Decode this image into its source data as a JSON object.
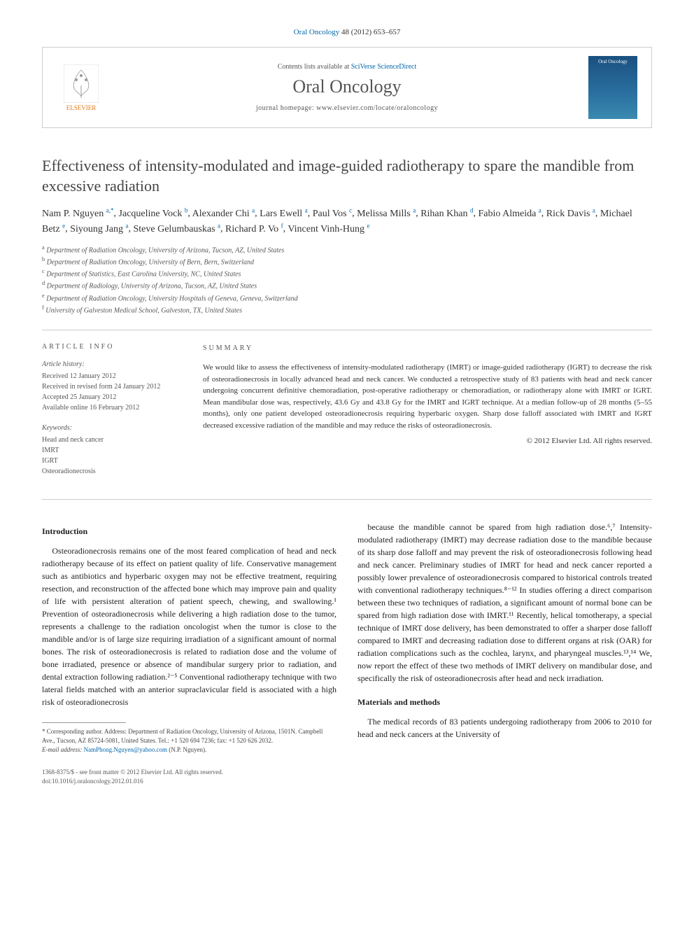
{
  "citation": {
    "journal_link": "Oral Oncology",
    "ref": " 48 (2012) 653–657"
  },
  "header": {
    "contents_prefix": "Contents lists available at ",
    "contents_link": "SciVerse ScienceDirect",
    "journal_name": "Oral Oncology",
    "homepage_label": "journal homepage: www.elsevier.com/locate/oraloncology",
    "publisher": "ELSEVIER",
    "cover_text": "Oral Oncology"
  },
  "title": "Effectiveness of intensity-modulated and image-guided radiotherapy to spare the mandible from excessive radiation",
  "authors_html": [
    {
      "name": "Nam P. Nguyen",
      "sup": "a,*"
    },
    {
      "name": "Jacqueline Vock",
      "sup": "b"
    },
    {
      "name": "Alexander Chi",
      "sup": "a"
    },
    {
      "name": "Lars Ewell",
      "sup": "a"
    },
    {
      "name": "Paul Vos",
      "sup": "c"
    },
    {
      "name": "Melissa Mills",
      "sup": "a"
    },
    {
      "name": "Rihan Khan",
      "sup": "d"
    },
    {
      "name": "Fabio Almeida",
      "sup": "a"
    },
    {
      "name": "Rick Davis",
      "sup": "a"
    },
    {
      "name": "Michael Betz",
      "sup": "e"
    },
    {
      "name": "Siyoung Jang",
      "sup": "a"
    },
    {
      "name": "Steve Gelumbauskas",
      "sup": "a"
    },
    {
      "name": "Richard P. Vo",
      "sup": "f"
    },
    {
      "name": "Vincent Vinh-Hung",
      "sup": "e"
    }
  ],
  "affiliations": [
    {
      "sup": "a",
      "text": "Department of Radiation Oncology, University of Arizona, Tucson, AZ, United States"
    },
    {
      "sup": "b",
      "text": "Department of Radiation Oncology, University of Bern, Bern, Switzerland"
    },
    {
      "sup": "c",
      "text": "Department of Statistics, East Carolina University, NC, United States"
    },
    {
      "sup": "d",
      "text": "Department of Radiology, University of Arizona, Tucson, AZ, United States"
    },
    {
      "sup": "e",
      "text": "Department of Radiation Oncology, University Hospitals of Geneva, Geneva, Switzerland"
    },
    {
      "sup": "f",
      "text": "University of Galveston Medical School, Galveston, TX, United States"
    }
  ],
  "article_info": {
    "heading": "ARTICLE INFO",
    "history_label": "Article history:",
    "history": [
      "Received 12 January 2012",
      "Received in revised form 24 January 2012",
      "Accepted 25 January 2012",
      "Available online 16 February 2012"
    ],
    "keywords_label": "Keywords:",
    "keywords": [
      "Head and neck cancer",
      "IMRT",
      "IGRT",
      "Osteoradionecrosis"
    ]
  },
  "summary": {
    "heading": "SUMMARY",
    "text": "We would like to assess the effectiveness of intensity-modulated radiotherapy (IMRT) or image-guided radiotherapy (IGRT) to decrease the risk of osteoradionecrosis in locally advanced head and neck cancer. We conducted a retrospective study of 83 patients with head and neck cancer undergoing concurrent definitive chemoradiation, post-operative radiotherapy or chemoradiation, or radiotherapy alone with IMRT or IGRT. Mean mandibular dose was, respectively, 43.6 Gy and 43.8 Gy for the IMRT and IGRT technique. At a median follow-up of 28 months (5–55 months), only one patient developed osteoradionecrosis requiring hyperbaric oxygen. Sharp dose falloff associated with IMRT and IGRT decreased excessive radiation of the mandible and may reduce the risks of osteoradionecrosis.",
    "copyright": "© 2012 Elsevier Ltd. All rights reserved."
  },
  "sections": {
    "intro_heading": "Introduction",
    "intro_p1": "Osteoradionecrosis remains one of the most feared complication of head and neck radiotherapy because of its effect on patient quality of life. Conservative management such as antibiotics and hyperbaric oxygen may not be effective treatment, requiring resection, and reconstruction of the affected bone which may improve pain and quality of life with persistent alteration of patient speech, chewing, and swallowing.¹ Prevention of osteoradionecrosis while delivering a high radiation dose to the tumor, represents a challenge to the radiation oncologist when the tumor is close to the mandible and/or is of large size requiring irradiation of a significant amount of normal bones. The risk of osteoradionecrosis is related to radiation dose and the volume of bone irradiated, presence or absence of mandibular surgery prior to radiation, and dental extraction following radiation.²⁻⁵ Conventional radiotherapy technique with two lateral fields matched with an anterior supraclavicular field is associated with a high risk of osteoradionecrosis",
    "intro_p2": "because the mandible cannot be spared from high radiation dose.⁶,⁷ Intensity-modulated radiotherapy (IMRT) may decrease radiation dose to the mandible because of its sharp dose falloff and may prevent the risk of osteoradionecrosis following head and neck cancer. Preliminary studies of IMRT for head and neck cancer reported a possibly lower prevalence of osteoradionecrosis compared to historical controls treated with conventional radiotherapy techniques.⁸⁻¹² In studies offering a direct comparison between these two techniques of radiation, a significant amount of normal bone can be spared from high radiation dose with IMRT.¹¹ Recently, helical tomotherapy, a special technique of IMRT dose delivery, has been demonstrated to offer a sharper dose falloff compared to IMRT and decreasing radiation dose to different organs at risk (OAR) for radiation complications such as the cochlea, larynx, and pharyngeal muscles.¹³,¹⁴ We, now report the effect of these two methods of IMRT delivery on mandibular dose, and specifically the risk of osteoradionecrosis after head and neck irradiation.",
    "methods_heading": "Materials and methods",
    "methods_p1": "The medical records of 83 patients undergoing radiotherapy from 2006 to 2010 for head and neck cancers at the University of"
  },
  "footnotes": {
    "corresponding": "* Corresponding author. Address: Department of Radiation Oncology, University of Arizona, 1501N. Campbell Ave., Tucson, AZ 85724-5081, United States. Tel.: +1 520 694 7236; fax: +1 520 626 2032.",
    "email_label": "E-mail address: ",
    "email": "NamPhong.Nguyen@yahoo.com",
    "email_suffix": " (N.P. Nguyen)."
  },
  "bottom": {
    "line1": "1368-8375/$ - see front matter © 2012 Elsevier Ltd. All rights reserved.",
    "line2": "doi:10.1016/j.oraloncology.2012.01.016"
  },
  "colors": {
    "link": "#0066aa",
    "accent": "#e67817",
    "text": "#222222",
    "muted": "#555555",
    "border": "#cccccc"
  }
}
